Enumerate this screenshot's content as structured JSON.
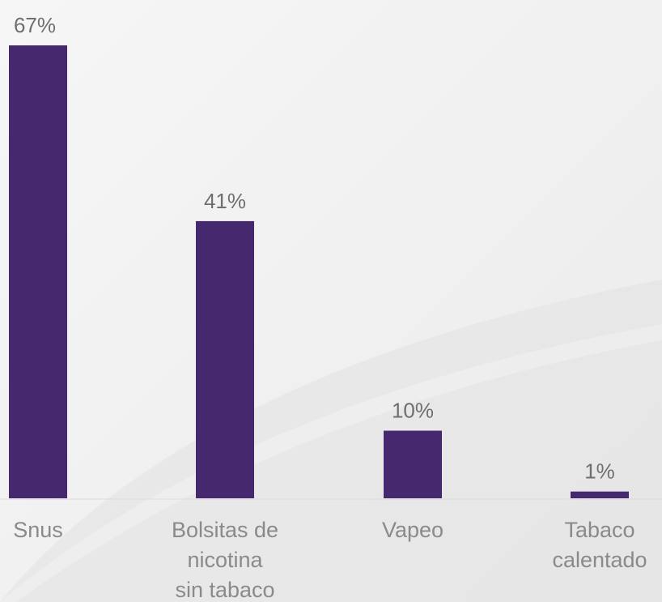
{
  "chart_data": {
    "type": "bar",
    "categories": [
      [
        "Snus"
      ],
      [
        "Bolsitas de",
        "nicotina",
        "sin tabaco"
      ],
      [
        "Vapeo"
      ],
      [
        "Tabaco",
        "calentado"
      ]
    ],
    "values": [
      67,
      41,
      10,
      1
    ],
    "value_labels": [
      "67%",
      "41%",
      "10%",
      "1%"
    ],
    "ylim": [
      0,
      67
    ],
    "grid": false,
    "legend": "none",
    "colors": {
      "bar": "#45286e",
      "value_label": "#6f6f6f",
      "category_label": "#8a8a8a",
      "baseline": "#dcdcdc"
    }
  }
}
